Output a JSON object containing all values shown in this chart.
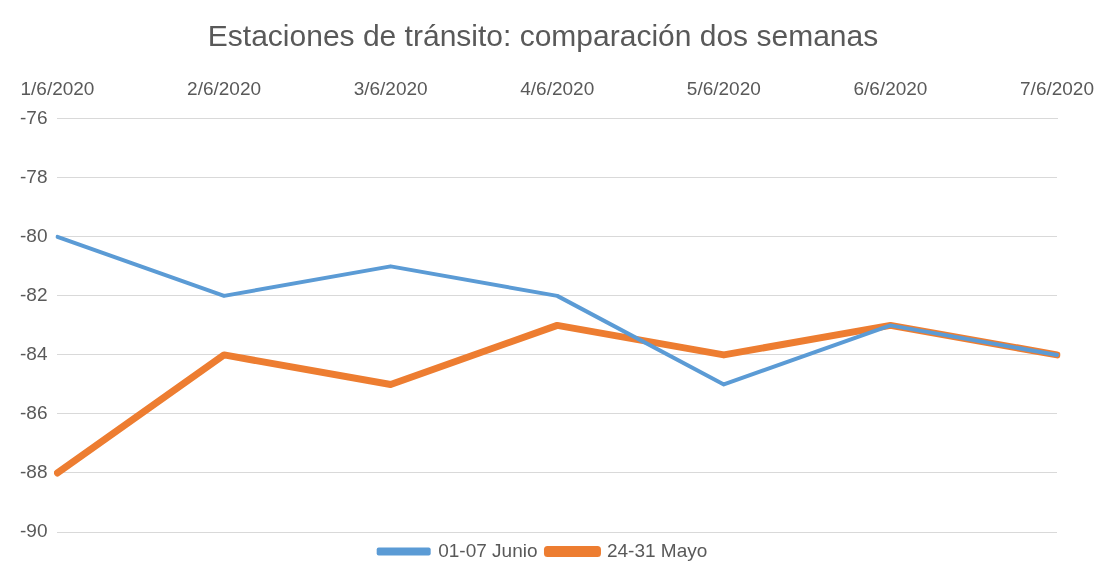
{
  "chart_data": {
    "type": "line",
    "title": "Estaciones de tránsito: comparación dos semanas",
    "categories": [
      "1/6/2020",
      "2/6/2020",
      "3/6/2020",
      "4/6/2020",
      "5/6/2020",
      "6/6/2020",
      "7/6/2020"
    ],
    "series": [
      {
        "name": "01-07 Junio",
        "color": "#5b9bd5",
        "values": [
          -80,
          -82,
          -81,
          -82,
          -85,
          -83,
          -84
        ]
      },
      {
        "name": "24-31 Mayo",
        "color": "#ed7d31",
        "values": [
          -88,
          -84,
          -85,
          -83,
          -84,
          -83,
          -84
        ]
      }
    ],
    "ylim": [
      -90,
      -76
    ],
    "yticks": [
      -90,
      -88,
      -86,
      -84,
      -82,
      -80,
      -78,
      -76
    ],
    "grid": "y",
    "legend": "bottom"
  }
}
